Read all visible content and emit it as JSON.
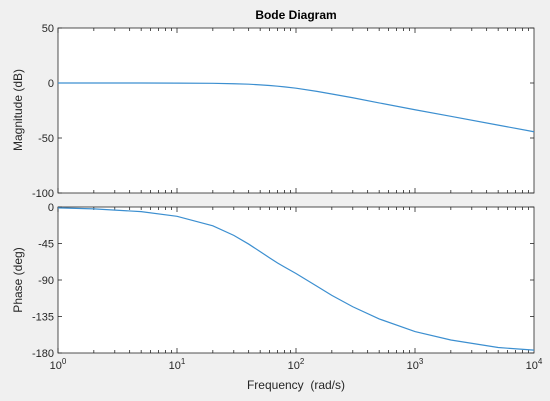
{
  "figure": {
    "background": "#f0f0f0",
    "axes_background": "#ffffff",
    "axes_color": "#262626",
    "grid": false
  },
  "chart_data": [
    {
      "type": "line",
      "title": "Bode Diagram",
      "xlabel": "",
      "ylabel": "Magnitude (dB)",
      "xscale": "log",
      "xlim": [
        1,
        10000
      ],
      "ylim": [
        -100,
        50
      ],
      "yticks": [
        50,
        0,
        -50,
        -100
      ],
      "yticklabels": [
        "50",
        "0",
        "-50",
        "-100"
      ],
      "series": [
        {
          "color": "#3c8fd0",
          "x": [
            1,
            2,
            5,
            10,
            20,
            30,
            40,
            50,
            60,
            70,
            80,
            100,
            150,
            200,
            300,
            500,
            1000,
            2000,
            5000,
            10000
          ],
          "y": [
            0,
            0,
            0,
            -0.1,
            -0.3,
            -0.7,
            -1.1,
            -1.7,
            -2.3,
            -2.9,
            -3.5,
            -4.7,
            -7.6,
            -10,
            -13.4,
            -18.1,
            -24.3,
            -30.3,
            -38.3,
            -44.3
          ]
        }
      ]
    },
    {
      "type": "line",
      "title": "",
      "xlabel": "Frequency  (rad/s)",
      "ylabel": "Phase (deg)",
      "xscale": "log",
      "xlim": [
        1,
        10000
      ],
      "ylim": [
        -180,
        0
      ],
      "yticks": [
        0,
        -45,
        -90,
        -135,
        -180
      ],
      "yticklabels": [
        "0",
        "-45",
        "-90",
        "-135",
        "-180"
      ],
      "xticks": [
        1,
        10,
        100,
        1000,
        10000
      ],
      "xticklabels_base": [
        "10",
        "10",
        "10",
        "10",
        "10"
      ],
      "xticklabels_exp": [
        "0",
        "1",
        "2",
        "3",
        "4"
      ],
      "series": [
        {
          "color": "#3c8fd0",
          "x": [
            1,
            2,
            5,
            10,
            20,
            30,
            40,
            50,
            60,
            70,
            80,
            100,
            150,
            200,
            300,
            500,
            1000,
            2000,
            5000,
            10000
          ],
          "y": [
            -1.1,
            -2.3,
            -5.7,
            -11.5,
            -23.2,
            -35,
            -45.7,
            -55,
            -62.7,
            -69,
            -74,
            -82,
            -97.7,
            -109,
            -123,
            -138,
            -153.6,
            -164,
            -173.2,
            -176.5
          ]
        }
      ]
    }
  ]
}
